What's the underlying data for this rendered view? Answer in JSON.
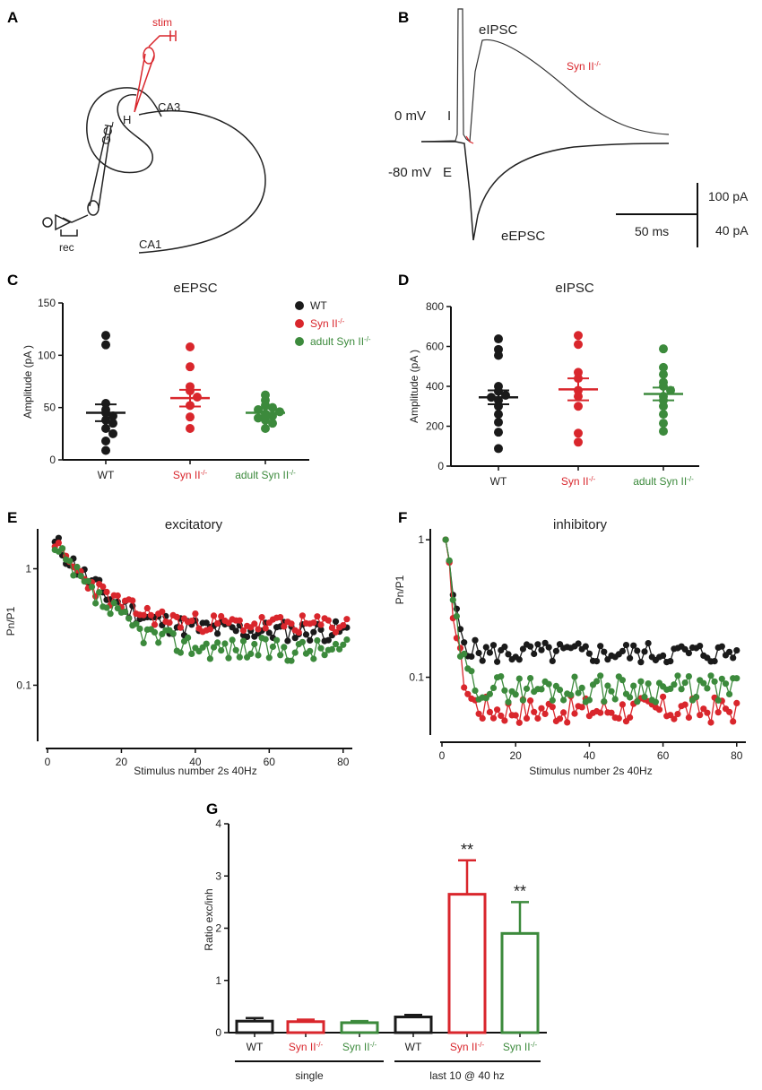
{
  "colors": {
    "wt": "#1a1a1a",
    "syn": "#d9262c",
    "adult": "#3c8a3c",
    "axis": "#111111"
  },
  "panels": {
    "A": {
      "label": "A",
      "stim": "stim",
      "rec": "rec",
      "gcl": "GCL",
      "hilus": "H",
      "ca3": "CA3",
      "ca1": "CA1"
    },
    "B": {
      "label": "B",
      "eipsc": "eIPSC",
      "syn": "Syn II",
      "syn_sup": "-/-",
      "v0": "0 mV",
      "i_mark": "I",
      "v80": "-80 mV",
      "e_mark": "E",
      "eepsc": "eEPSC",
      "scale_time": "50 ms",
      "scale_i1": "100 pA",
      "scale_i2": "40 pA"
    },
    "C": {
      "label": "C"
    },
    "D": {
      "label": "D"
    },
    "E": {
      "label": "E"
    },
    "F": {
      "label": "F"
    },
    "G": {
      "label": "G"
    }
  },
  "legend": [
    {
      "name": "WT",
      "sup": "",
      "color_key": "wt"
    },
    {
      "name": "Syn II",
      "sup": "-/-",
      "color_key": "syn"
    },
    {
      "name": "adult Syn II",
      "sup": "-/-",
      "color_key": "adult"
    }
  ],
  "chart_data": [
    {
      "id": "C",
      "type": "scatter",
      "title": "eEPSC",
      "ylabel": "Amplitude (pA )",
      "ylim": [
        0,
        150
      ],
      "yticks": [
        0,
        50,
        100,
        150
      ],
      "groups": [
        {
          "name": "WT",
          "sup": "",
          "color_key": "wt",
          "mean": 45,
          "sem": 8,
          "values": [
            119,
            110,
            54,
            48,
            45,
            42,
            38,
            35,
            30,
            25,
            18,
            9
          ]
        },
        {
          "name": "Syn II",
          "sup": "-/-",
          "color_key": "syn",
          "mean": 59,
          "sem": 8,
          "values": [
            108,
            89,
            70,
            66,
            60,
            52,
            41,
            30
          ]
        },
        {
          "name": "adult Syn II",
          "sup": "-/-",
          "color_key": "adult",
          "mean": 45,
          "sem": 4,
          "values": [
            62,
            57,
            52,
            50,
            48,
            46,
            44,
            42,
            40,
            38,
            35,
            30
          ]
        }
      ]
    },
    {
      "id": "D",
      "type": "scatter",
      "title": "eIPSC",
      "ylabel": "Amplitude (pA )",
      "ylim": [
        0,
        800
      ],
      "yticks": [
        0,
        200,
        400,
        600,
        800
      ],
      "groups": [
        {
          "name": "WT",
          "sup": "",
          "color_key": "wt",
          "mean": 345,
          "sem": 35,
          "values": [
            638,
            585,
            555,
            400,
            375,
            355,
            345,
            330,
            300,
            260,
            220,
            170,
            88
          ]
        },
        {
          "name": "Syn II",
          "sup": "-/-",
          "color_key": "syn",
          "mean": 385,
          "sem": 55,
          "values": [
            655,
            610,
            470,
            440,
            380,
            350,
            300,
            165,
            120
          ]
        },
        {
          "name": "adult Syn II",
          "sup": "-/-",
          "color_key": "adult",
          "mean": 362,
          "sem": 32,
          "values": [
            588,
            495,
            460,
            420,
            400,
            380,
            350,
            330,
            300,
            260,
            215,
            175
          ]
        }
      ]
    },
    {
      "id": "E",
      "type": "line",
      "title": "excitatory",
      "xlabel": "Stimulus number 2s 40Hz",
      "ylabel": "Pn/P1",
      "yscale": "log",
      "ylim": [
        0.033,
        2.2
      ],
      "xticks": [
        0,
        20,
        40,
        60,
        80
      ],
      "yticks": [
        1,
        0.1
      ],
      "ytick_labels": [
        "1",
        "0.1"
      ],
      "n_points": 80,
      "series": [
        {
          "name": "WT",
          "color_key": "wt",
          "start": 1.7,
          "end": 0.29,
          "tau": 9,
          "noise": 0.09,
          "seed": 11
        },
        {
          "name": "Syn II",
          "color_key": "syn",
          "start": 1.55,
          "end": 0.33,
          "tau": 9,
          "noise": 0.08,
          "seed": 23
        },
        {
          "name": "adult Syn II",
          "color_key": "adult",
          "start": 1.45,
          "end": 0.2,
          "tau": 9,
          "noise": 0.1,
          "seed": 37
        }
      ]
    },
    {
      "id": "F",
      "type": "line",
      "title": "inhibitory",
      "xlabel": "Stimulus number 2s 40Hz",
      "ylabel": "Pn/P1",
      "yscale": "log",
      "ylim": [
        0.038,
        1.2
      ],
      "xticks": [
        0,
        20,
        40,
        60,
        80
      ],
      "yticks": [
        1,
        0.1
      ],
      "ytick_labels": [
        "1",
        "0.1"
      ],
      "n_points": 80,
      "series": [
        {
          "name": "WT",
          "color_key": "wt",
          "start": 1.0,
          "end": 0.15,
          "tau": 1.6,
          "noise": 0.08,
          "seed": 5
        },
        {
          "name": "Syn II",
          "color_key": "syn",
          "start": 1.0,
          "end": 0.058,
          "tau": 1.6,
          "noise": 0.1,
          "seed": 17
        },
        {
          "name": "adult Syn II",
          "color_key": "adult",
          "start": 1.0,
          "end": 0.083,
          "tau": 1.6,
          "noise": 0.1,
          "seed": 29
        }
      ]
    },
    {
      "id": "G",
      "type": "bar",
      "ylabel": "Ratio exc/inh",
      "ylim": [
        0,
        4
      ],
      "yticks": [
        0,
        1,
        2,
        3,
        4
      ],
      "bars": [
        {
          "name": "WT",
          "sup": "",
          "color_key": "wt",
          "value": 0.22,
          "err": 0.06,
          "sig": ""
        },
        {
          "name": "Syn II",
          "sup": "-/-",
          "color_key": "syn",
          "value": 0.21,
          "err": 0.04,
          "sig": ""
        },
        {
          "name": "Syn II",
          "sup": "-/-",
          "color_key": "adult",
          "value": 0.19,
          "err": 0.03,
          "sig": ""
        },
        {
          "name": "WT",
          "sup": "",
          "color_key": "wt",
          "value": 0.3,
          "err": 0.04,
          "sig": ""
        },
        {
          "name": "Syn II",
          "sup": "-/-",
          "color_key": "syn",
          "value": 2.65,
          "err": 0.65,
          "sig": "**"
        },
        {
          "name": "Syn II",
          "sup": "-/-",
          "color_key": "adult",
          "value": 1.9,
          "err": 0.6,
          "sig": "**"
        }
      ],
      "group_labels": [
        "single",
        "last 10 @ 40 hz"
      ]
    }
  ]
}
